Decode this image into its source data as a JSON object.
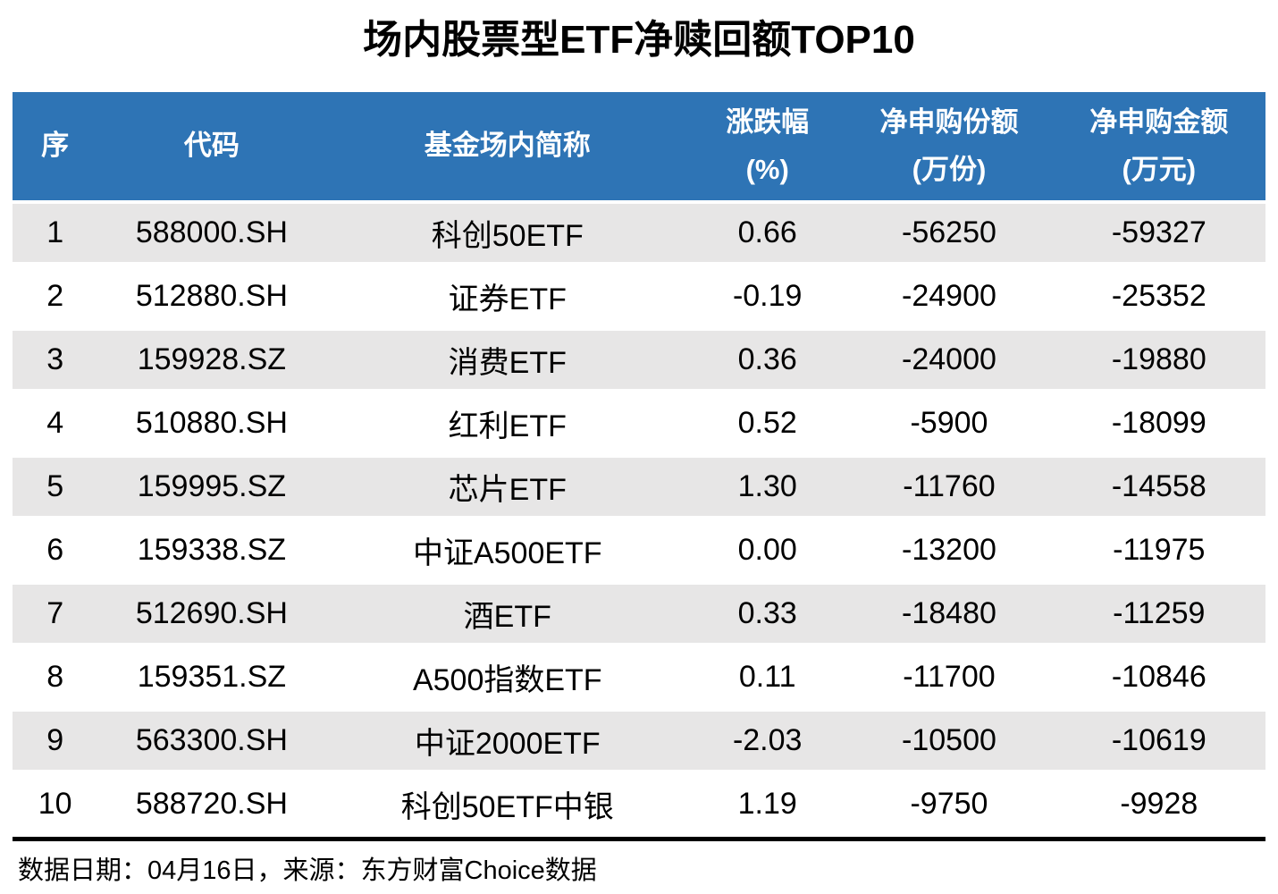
{
  "title": "场内股票型ETF净赎回额TOP10",
  "colors": {
    "header_bg": "#2E74B5",
    "header_text": "#FFFFFF",
    "alt_row_bg": "#E7E6E6",
    "body_text": "#000000",
    "divider": "#000000"
  },
  "chart_data": {
    "type": "table",
    "title": "场内股票型ETF净赎回额TOP10",
    "columns": [
      {
        "name": "序",
        "unit": ""
      },
      {
        "name": "代码",
        "unit": ""
      },
      {
        "name": "基金场内简称",
        "unit": ""
      },
      {
        "name": "涨跌幅",
        "unit": "(%)"
      },
      {
        "name": "净申购份额",
        "unit": "(万份)"
      },
      {
        "name": "净申购金额",
        "unit": "(万元)"
      }
    ],
    "rows": [
      [
        "1",
        "588000.SH",
        "科创50ETF",
        "0.66",
        "-56250",
        "-59327"
      ],
      [
        "2",
        "512880.SH",
        "证券ETF",
        "-0.19",
        "-24900",
        "-25352"
      ],
      [
        "3",
        "159928.SZ",
        "消费ETF",
        "0.36",
        "-24000",
        "-19880"
      ],
      [
        "4",
        "510880.SH",
        "红利ETF",
        "0.52",
        "-5900",
        "-18099"
      ],
      [
        "5",
        "159995.SZ",
        "芯片ETF",
        "1.30",
        "-11760",
        "-14558"
      ],
      [
        "6",
        "159338.SZ",
        "中证A500ETF",
        "0.00",
        "-13200",
        "-11975"
      ],
      [
        "7",
        "512690.SH",
        "酒ETF",
        "0.33",
        "-18480",
        "-11259"
      ],
      [
        "8",
        "159351.SZ",
        "A500指数ETF",
        "0.11",
        "-11700",
        "-10846"
      ],
      [
        "9",
        "563300.SH",
        "中证2000ETF",
        "-2.03",
        "-10500",
        "-10619"
      ],
      [
        "10",
        "588720.SH",
        "科创50ETF中银",
        "1.19",
        "-9750",
        "-9928"
      ]
    ]
  },
  "footer": {
    "text": "数据日期：04月16日，来源：东方财富Choice数据"
  }
}
